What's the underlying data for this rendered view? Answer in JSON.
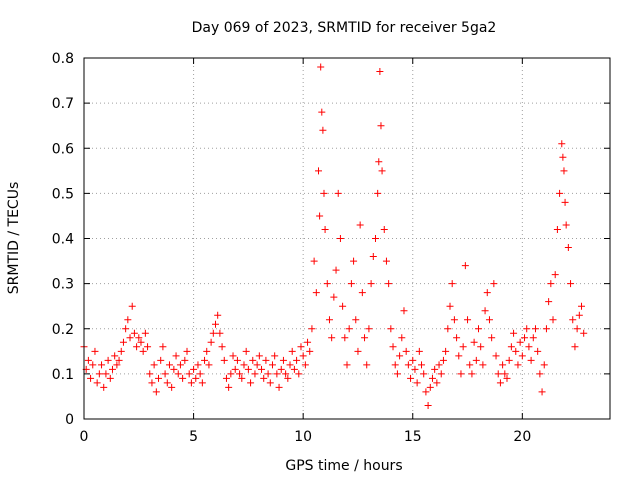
{
  "chart_data": {
    "type": "scatter",
    "title": "Day 069 of 2023, SRMTID for receiver 5ga2",
    "xlabel": "GPS time / hours",
    "ylabel": "SRMTID / TECUs",
    "xlim": [
      0,
      24
    ],
    "ylim": [
      0,
      0.8
    ],
    "xticks": [
      0,
      5,
      10,
      15,
      20
    ],
    "yticks": [
      0,
      0.1,
      0.2,
      0.3,
      0.4,
      0.5,
      0.6,
      0.7,
      0.8
    ],
    "xtick_labels": [
      "0",
      "5",
      "10",
      "15",
      "20"
    ],
    "ytick_labels": [
      "0",
      "0.1",
      "0.2",
      "0.3",
      "0.4",
      "0.5",
      "0.6",
      "0.7",
      "0.8"
    ],
    "grid": true,
    "marker": "+",
    "color": "#ff0000",
    "series": [
      {
        "name": "SRMTID",
        "points": [
          [
            0.0,
            0.16
          ],
          [
            0.1,
            0.11
          ],
          [
            0.2,
            0.13
          ],
          [
            0.3,
            0.09
          ],
          [
            0.4,
            0.12
          ],
          [
            0.5,
            0.15
          ],
          [
            0.6,
            0.08
          ],
          [
            0.7,
            0.1
          ],
          [
            0.8,
            0.12
          ],
          [
            0.9,
            0.07
          ],
          [
            1.0,
            0.1
          ],
          [
            1.1,
            0.13
          ],
          [
            1.2,
            0.09
          ],
          [
            1.3,
            0.11
          ],
          [
            1.4,
            0.14
          ],
          [
            1.5,
            0.12
          ],
          [
            1.6,
            0.13
          ],
          [
            1.7,
            0.15
          ],
          [
            1.8,
            0.17
          ],
          [
            1.9,
            0.2
          ],
          [
            2.0,
            0.22
          ],
          [
            2.1,
            0.18
          ],
          [
            2.2,
            0.25
          ],
          [
            2.3,
            0.19
          ],
          [
            2.4,
            0.16
          ],
          [
            2.5,
            0.18
          ],
          [
            2.6,
            0.17
          ],
          [
            2.7,
            0.15
          ],
          [
            2.8,
            0.19
          ],
          [
            2.9,
            0.16
          ],
          [
            3.0,
            0.1
          ],
          [
            3.1,
            0.08
          ],
          [
            3.2,
            0.12
          ],
          [
            3.3,
            0.06
          ],
          [
            3.4,
            0.09
          ],
          [
            3.5,
            0.13
          ],
          [
            3.6,
            0.16
          ],
          [
            3.7,
            0.1
          ],
          [
            3.8,
            0.08
          ],
          [
            3.9,
            0.12
          ],
          [
            4.0,
            0.07
          ],
          [
            4.1,
            0.11
          ],
          [
            4.2,
            0.14
          ],
          [
            4.3,
            0.1
          ],
          [
            4.4,
            0.12
          ],
          [
            4.5,
            0.09
          ],
          [
            4.6,
            0.13
          ],
          [
            4.7,
            0.15
          ],
          [
            4.8,
            0.1
          ],
          [
            4.9,
            0.08
          ],
          [
            5.0,
            0.11
          ],
          [
            5.1,
            0.09
          ],
          [
            5.2,
            0.12
          ],
          [
            5.3,
            0.1
          ],
          [
            5.4,
            0.08
          ],
          [
            5.5,
            0.13
          ],
          [
            5.6,
            0.15
          ],
          [
            5.7,
            0.12
          ],
          [
            5.8,
            0.17
          ],
          [
            5.9,
            0.19
          ],
          [
            6.0,
            0.21
          ],
          [
            6.1,
            0.23
          ],
          [
            6.2,
            0.19
          ],
          [
            6.3,
            0.16
          ],
          [
            6.4,
            0.13
          ],
          [
            6.5,
            0.09
          ],
          [
            6.6,
            0.07
          ],
          [
            6.7,
            0.1
          ],
          [
            6.8,
            0.14
          ],
          [
            6.9,
            0.11
          ],
          [
            7.0,
            0.13
          ],
          [
            7.1,
            0.1
          ],
          [
            7.2,
            0.09
          ],
          [
            7.3,
            0.12
          ],
          [
            7.4,
            0.15
          ],
          [
            7.5,
            0.11
          ],
          [
            7.6,
            0.08
          ],
          [
            7.7,
            0.13
          ],
          [
            7.8,
            0.1
          ],
          [
            7.9,
            0.12
          ],
          [
            8.0,
            0.14
          ],
          [
            8.1,
            0.11
          ],
          [
            8.2,
            0.09
          ],
          [
            8.3,
            0.13
          ],
          [
            8.4,
            0.1
          ],
          [
            8.5,
            0.08
          ],
          [
            8.6,
            0.12
          ],
          [
            8.7,
            0.14
          ],
          [
            8.8,
            0.1
          ],
          [
            8.9,
            0.07
          ],
          [
            9.0,
            0.11
          ],
          [
            9.1,
            0.13
          ],
          [
            9.2,
            0.1
          ],
          [
            9.3,
            0.09
          ],
          [
            9.4,
            0.12
          ],
          [
            9.5,
            0.15
          ],
          [
            9.6,
            0.11
          ],
          [
            9.7,
            0.13
          ],
          [
            9.8,
            0.1
          ],
          [
            9.9,
            0.16
          ],
          [
            10.0,
            0.14
          ],
          [
            10.1,
            0.12
          ],
          [
            10.2,
            0.17
          ],
          [
            10.3,
            0.15
          ],
          [
            10.4,
            0.2
          ],
          [
            10.5,
            0.35
          ],
          [
            10.6,
            0.28
          ],
          [
            10.7,
            0.55
          ],
          [
            10.75,
            0.45
          ],
          [
            10.8,
            0.78
          ],
          [
            10.85,
            0.68
          ],
          [
            10.9,
            0.64
          ],
          [
            10.95,
            0.5
          ],
          [
            11.0,
            0.42
          ],
          [
            11.1,
            0.3
          ],
          [
            11.2,
            0.22
          ],
          [
            11.3,
            0.18
          ],
          [
            11.4,
            0.27
          ],
          [
            11.5,
            0.33
          ],
          [
            11.6,
            0.5
          ],
          [
            11.7,
            0.4
          ],
          [
            11.8,
            0.25
          ],
          [
            11.9,
            0.18
          ],
          [
            12.0,
            0.12
          ],
          [
            12.1,
            0.2
          ],
          [
            12.2,
            0.3
          ],
          [
            12.3,
            0.35
          ],
          [
            12.4,
            0.22
          ],
          [
            12.5,
            0.15
          ],
          [
            12.6,
            0.43
          ],
          [
            12.7,
            0.28
          ],
          [
            12.8,
            0.18
          ],
          [
            12.9,
            0.12
          ],
          [
            13.0,
            0.2
          ],
          [
            13.1,
            0.3
          ],
          [
            13.2,
            0.36
          ],
          [
            13.3,
            0.4
          ],
          [
            13.4,
            0.5
          ],
          [
            13.45,
            0.57
          ],
          [
            13.5,
            0.77
          ],
          [
            13.55,
            0.65
          ],
          [
            13.6,
            0.55
          ],
          [
            13.7,
            0.42
          ],
          [
            13.8,
            0.35
          ],
          [
            13.9,
            0.3
          ],
          [
            14.0,
            0.2
          ],
          [
            14.1,
            0.16
          ],
          [
            14.2,
            0.12
          ],
          [
            14.3,
            0.1
          ],
          [
            14.4,
            0.14
          ],
          [
            14.5,
            0.18
          ],
          [
            14.6,
            0.24
          ],
          [
            14.7,
            0.15
          ],
          [
            14.8,
            0.12
          ],
          [
            14.9,
            0.09
          ],
          [
            15.0,
            0.13
          ],
          [
            15.1,
            0.11
          ],
          [
            15.2,
            0.08
          ],
          [
            15.3,
            0.15
          ],
          [
            15.4,
            0.12
          ],
          [
            15.5,
            0.1
          ],
          [
            15.6,
            0.06
          ],
          [
            15.7,
            0.03
          ],
          [
            15.8,
            0.07
          ],
          [
            15.9,
            0.09
          ],
          [
            16.0,
            0.11
          ],
          [
            16.1,
            0.08
          ],
          [
            16.2,
            0.12
          ],
          [
            16.3,
            0.1
          ],
          [
            16.4,
            0.13
          ],
          [
            16.5,
            0.15
          ],
          [
            16.6,
            0.2
          ],
          [
            16.7,
            0.25
          ],
          [
            16.8,
            0.3
          ],
          [
            16.9,
            0.22
          ],
          [
            17.0,
            0.18
          ],
          [
            17.1,
            0.14
          ],
          [
            17.2,
            0.1
          ],
          [
            17.3,
            0.16
          ],
          [
            17.4,
            0.34
          ],
          [
            17.5,
            0.22
          ],
          [
            17.6,
            0.12
          ],
          [
            17.7,
            0.1
          ],
          [
            17.8,
            0.17
          ],
          [
            17.9,
            0.13
          ],
          [
            18.0,
            0.2
          ],
          [
            18.1,
            0.16
          ],
          [
            18.2,
            0.12
          ],
          [
            18.3,
            0.24
          ],
          [
            18.4,
            0.28
          ],
          [
            18.5,
            0.22
          ],
          [
            18.6,
            0.18
          ],
          [
            18.7,
            0.3
          ],
          [
            18.8,
            0.14
          ],
          [
            18.9,
            0.1
          ],
          [
            19.0,
            0.08
          ],
          [
            19.1,
            0.12
          ],
          [
            19.2,
            0.1
          ],
          [
            19.3,
            0.09
          ],
          [
            19.4,
            0.13
          ],
          [
            19.5,
            0.16
          ],
          [
            19.6,
            0.19
          ],
          [
            19.7,
            0.15
          ],
          [
            19.8,
            0.12
          ],
          [
            19.9,
            0.17
          ],
          [
            20.0,
            0.14
          ],
          [
            20.1,
            0.18
          ],
          [
            20.2,
            0.2
          ],
          [
            20.3,
            0.16
          ],
          [
            20.4,
            0.13
          ],
          [
            20.5,
            0.18
          ],
          [
            20.6,
            0.2
          ],
          [
            20.7,
            0.15
          ],
          [
            20.8,
            0.1
          ],
          [
            20.9,
            0.06
          ],
          [
            21.0,
            0.12
          ],
          [
            21.1,
            0.2
          ],
          [
            21.2,
            0.26
          ],
          [
            21.3,
            0.3
          ],
          [
            21.4,
            0.22
          ],
          [
            21.5,
            0.32
          ],
          [
            21.6,
            0.42
          ],
          [
            21.7,
            0.5
          ],
          [
            21.8,
            0.61
          ],
          [
            21.85,
            0.58
          ],
          [
            21.9,
            0.55
          ],
          [
            21.95,
            0.48
          ],
          [
            22.0,
            0.43
          ],
          [
            22.1,
            0.38
          ],
          [
            22.2,
            0.3
          ],
          [
            22.3,
            0.22
          ],
          [
            22.4,
            0.16
          ],
          [
            22.5,
            0.2
          ],
          [
            22.6,
            0.23
          ],
          [
            22.7,
            0.25
          ],
          [
            22.8,
            0.19
          ]
        ]
      }
    ]
  }
}
